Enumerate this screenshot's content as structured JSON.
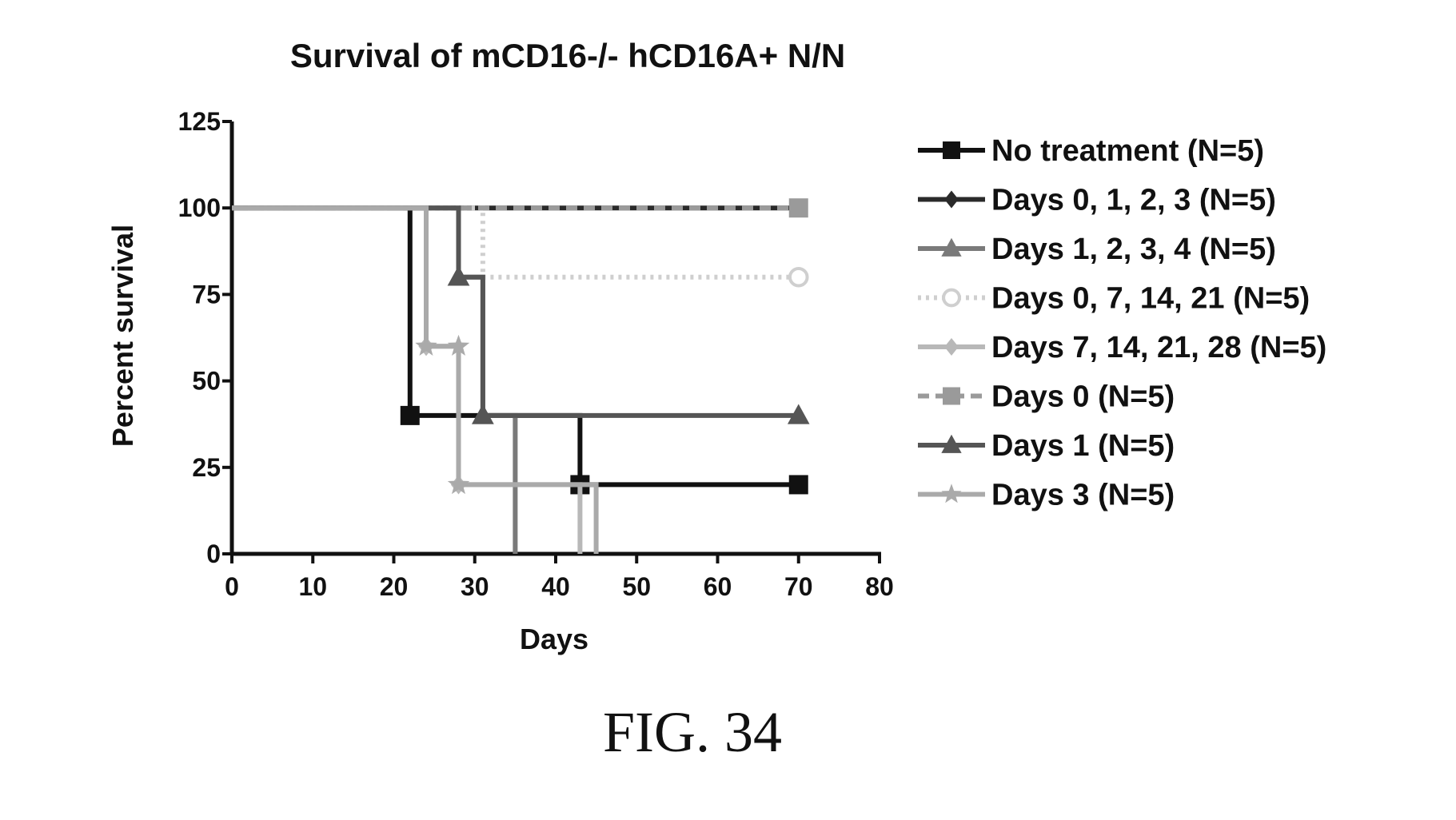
{
  "figure_caption": "FIG. 34",
  "chart_data": {
    "type": "line",
    "subtype": "kaplan-meier step",
    "title": "Survival of mCD16-/- hCD16A+ N/N",
    "xlabel": "Days",
    "ylabel": "Percent survival",
    "xlim": [
      0,
      80
    ],
    "ylim": [
      0,
      125
    ],
    "xticks": [
      "0",
      "10",
      "20",
      "30",
      "40",
      "50",
      "60",
      "70",
      "80"
    ],
    "yticks": [
      "0",
      "25",
      "50",
      "75",
      "100",
      "125"
    ],
    "grid": false,
    "legend_position": "right",
    "series": [
      {
        "name": "No treatment (N=5)",
        "color": "#111111",
        "marker": "square",
        "dash": "solid",
        "points": [
          [
            0,
            100
          ],
          [
            22,
            100
          ],
          [
            22,
            40
          ],
          [
            43,
            40
          ],
          [
            43,
            20
          ],
          [
            70,
            20
          ]
        ],
        "marker_points": [
          [
            22,
            40
          ],
          [
            43,
            20
          ],
          [
            70,
            20
          ]
        ]
      },
      {
        "name": "Days 0, 1, 2, 3 (N=5)",
        "color": "#2a2a2a",
        "marker": "diamond",
        "dash": "solid",
        "points": [
          [
            0,
            100
          ],
          [
            70,
            100
          ]
        ],
        "marker_points": []
      },
      {
        "name": "Days 1, 2, 3, 4 (N=5)",
        "color": "#7a7a7a",
        "marker": "triangle",
        "dash": "solid",
        "points": [
          [
            0,
            100
          ],
          [
            28,
            100
          ],
          [
            28,
            80
          ],
          [
            31,
            80
          ],
          [
            31,
            40
          ],
          [
            35,
            40
          ],
          [
            35,
            0
          ]
        ],
        "marker_points": [
          [
            28,
            80
          ],
          [
            31,
            40
          ]
        ]
      },
      {
        "name": "Days 0, 7, 14, 21 (N=5)",
        "color": "#cfcfcf",
        "marker": "circle",
        "dash": "dotted",
        "points": [
          [
            0,
            100
          ],
          [
            31,
            100
          ],
          [
            31,
            80
          ],
          [
            70,
            80
          ]
        ],
        "marker_points": [
          [
            70,
            80
          ]
        ]
      },
      {
        "name": "Days 7, 14, 21, 28 (N=5)",
        "color": "#b8b8b8",
        "marker": "diamond",
        "dash": "solid",
        "points": [
          [
            0,
            100
          ],
          [
            24,
            100
          ],
          [
            24,
            60
          ],
          [
            28,
            60
          ],
          [
            28,
            20
          ],
          [
            43,
            20
          ],
          [
            43,
            0
          ]
        ],
        "marker_points": [
          [
            24,
            60
          ],
          [
            28,
            20
          ]
        ]
      },
      {
        "name": "Days 0 (N=5)",
        "color": "#9a9a9a",
        "marker": "square",
        "dash": "dashed",
        "points": [
          [
            0,
            100
          ],
          [
            70,
            100
          ]
        ],
        "marker_points": [
          [
            70,
            100
          ]
        ]
      },
      {
        "name": "Days 1 (N=5)",
        "color": "#555555",
        "marker": "triangle",
        "dash": "solid",
        "points": [
          [
            0,
            100
          ],
          [
            28,
            100
          ],
          [
            28,
            80
          ],
          [
            31,
            80
          ],
          [
            31,
            40
          ],
          [
            70,
            40
          ]
        ],
        "marker_points": [
          [
            28,
            80
          ],
          [
            31,
            40
          ],
          [
            70,
            40
          ]
        ]
      },
      {
        "name": "Days 3 (N=5)",
        "color": "#aaaaaa",
        "marker": "star",
        "dash": "solid",
        "points": [
          [
            0,
            100
          ],
          [
            24,
            100
          ],
          [
            24,
            60
          ],
          [
            28,
            60
          ],
          [
            28,
            20
          ],
          [
            45,
            20
          ],
          [
            45,
            0
          ]
        ],
        "marker_points": [
          [
            24,
            60
          ],
          [
            28,
            60
          ],
          [
            28,
            20
          ]
        ]
      }
    ]
  }
}
